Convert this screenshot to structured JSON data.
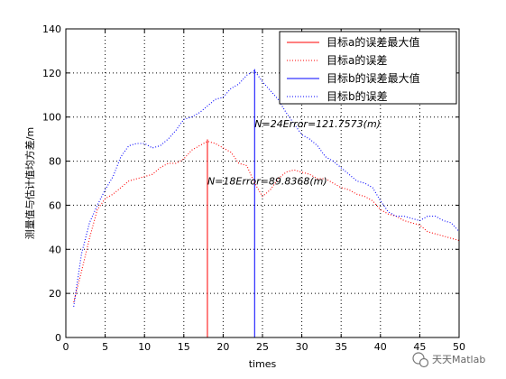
{
  "chart_data": {
    "type": "line",
    "xlabel": "times",
    "ylabel": "测量值与估计值均方差/m",
    "xlim": [
      0,
      50
    ],
    "ylim": [
      0,
      140
    ],
    "xticks": [
      0,
      5,
      10,
      15,
      20,
      25,
      30,
      35,
      40,
      45,
      50
    ],
    "yticks": [
      0,
      20,
      40,
      60,
      80,
      100,
      120,
      140
    ],
    "grid": true,
    "legend_position": "top-right",
    "series": [
      {
        "name": "目标a的误差最大值",
        "color": "#ff0000",
        "style": "solid",
        "kind": "stem",
        "x": [
          18
        ],
        "y": [
          89.8368
        ]
      },
      {
        "name": "目标a的误差",
        "color": "#ff0000",
        "style": "dotted",
        "kind": "line",
        "x": [
          1,
          2,
          3,
          4,
          5,
          6,
          7,
          8,
          9,
          10,
          11,
          12,
          13,
          14,
          15,
          16,
          17,
          18,
          19,
          20,
          21,
          22,
          23,
          24,
          25,
          26,
          27,
          28,
          29,
          30,
          31,
          32,
          33,
          34,
          35,
          36,
          37,
          38,
          39,
          40,
          41,
          42,
          43,
          44,
          45,
          46,
          47,
          48,
          49,
          50
        ],
        "y": [
          16,
          30,
          45,
          58,
          63,
          65,
          68,
          71,
          72,
          73,
          74,
          77,
          79,
          79,
          81,
          85,
          87,
          89,
          88,
          86,
          84,
          79,
          78,
          70,
          64,
          67,
          72,
          75,
          76,
          75,
          74,
          72,
          72,
          70,
          68,
          67,
          65,
          64,
          62,
          58,
          56,
          55,
          53,
          52,
          51,
          48,
          47,
          46,
          45,
          44
        ]
      },
      {
        "name": "目标b的误差最大值",
        "color": "#0000ff",
        "style": "solid",
        "kind": "stem",
        "x": [
          24
        ],
        "y": [
          121.7573
        ]
      },
      {
        "name": "目标b的误差",
        "color": "#0000ff",
        "style": "dotted",
        "kind": "line",
        "x": [
          1,
          2,
          3,
          4,
          5,
          6,
          7,
          8,
          9,
          10,
          11,
          12,
          13,
          14,
          15,
          16,
          17,
          18,
          19,
          20,
          21,
          22,
          23,
          24,
          25,
          26,
          27,
          28,
          29,
          30,
          31,
          32,
          33,
          34,
          35,
          36,
          37,
          38,
          39,
          40,
          41,
          42,
          43,
          44,
          45,
          46,
          47,
          48,
          49,
          50
        ],
        "y": [
          14,
          38,
          52,
          60,
          67,
          73,
          82,
          87,
          88,
          88,
          86,
          87,
          90,
          94,
          99,
          100,
          102,
          105,
          108,
          109,
          113,
          115,
          119,
          121,
          116,
          112,
          108,
          102,
          97,
          92,
          90,
          87,
          82,
          80,
          77,
          74,
          71,
          70,
          68,
          62,
          57,
          55,
          55,
          54,
          53,
          55,
          55,
          53,
          52,
          48
        ]
      }
    ],
    "annotations": [
      {
        "text": "N=18Error=89.8368(m)",
        "x": 18,
        "y": 71
      },
      {
        "text": "N=24Error=121.7573(m)",
        "x": 24,
        "y": 97
      }
    ]
  },
  "watermark": {
    "icon": "wechat-icon",
    "text": "天天Matlab"
  }
}
